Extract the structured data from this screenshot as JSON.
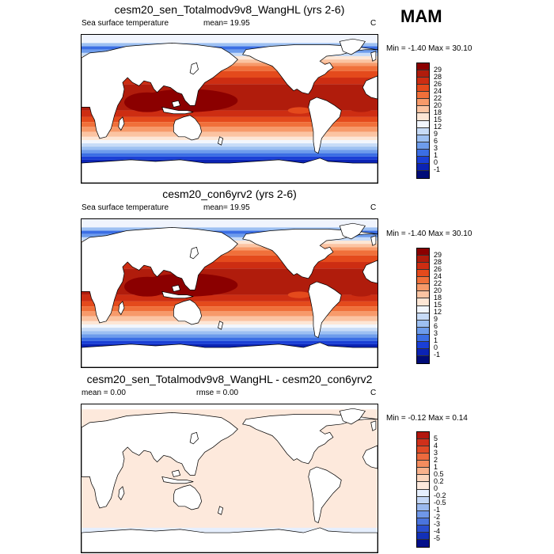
{
  "season": "MAM",
  "panels": [
    {
      "title": "cesm20_sen_Totalmodv9v8_WangHL (yrs 2-6)",
      "left_label": "Sea surface temperature",
      "center_label": "mean=  19.95",
      "units": "C",
      "minmax": "Min =  -1.40 Max =  30.10",
      "colorbar": {
        "labels": [
          "29",
          "28",
          "26",
          "24",
          "22",
          "20",
          "18",
          "15",
          "12",
          "9",
          "6",
          "3",
          "1",
          "0",
          "-1"
        ],
        "colors": [
          "#8b0000",
          "#b01c0c",
          "#cd2d12",
          "#e44a1c",
          "#f0703a",
          "#f79a6a",
          "#fbc4a2",
          "#fde6d5",
          "#f2f6fd",
          "#c7dbf7",
          "#9dc0f2",
          "#6d9cec",
          "#3b6ee4",
          "#1a3fd6",
          "#0b23b4",
          "#000c78"
        ]
      },
      "map_type": "sst"
    },
    {
      "title": "cesm20_con6yrv2 (yrs 2-6)",
      "left_label": "Sea surface temperature",
      "center_label": "mean=  19.95",
      "units": "C",
      "minmax": "Min =  -1.40 Max =  30.10",
      "colorbar": {
        "labels": [
          "29",
          "28",
          "26",
          "24",
          "22",
          "20",
          "18",
          "15",
          "12",
          "9",
          "6",
          "3",
          "1",
          "0",
          "-1"
        ],
        "colors": [
          "#8b0000",
          "#b01c0c",
          "#cd2d12",
          "#e44a1c",
          "#f0703a",
          "#f79a6a",
          "#fbc4a2",
          "#fde6d5",
          "#f2f6fd",
          "#c7dbf7",
          "#9dc0f2",
          "#6d9cec",
          "#3b6ee4",
          "#1a3fd6",
          "#0b23b4",
          "#000c78"
        ]
      },
      "map_type": "sst"
    },
    {
      "title": "cesm20_sen_Totalmodv9v8_WangHL - cesm20_con6yrv2",
      "left_label": "mean =   0.00",
      "center_label": "rmse =   0.00",
      "units": "C",
      "minmax": "Min = -0.12 Max =   0.14",
      "colorbar": {
        "labels": [
          "5",
          "4",
          "3",
          "2",
          "1",
          "0.5",
          "0.2",
          "0",
          "-0.2",
          "-0.5",
          "-1",
          "-2",
          "-3",
          "-4",
          "-5"
        ],
        "colors": [
          "#b2170f",
          "#d0301a",
          "#e04a26",
          "#ec6a3e",
          "#f48c5e",
          "#f9b28c",
          "#fcd6bd",
          "#fde9dc",
          "#e6effd",
          "#c4d7f6",
          "#9ab9ef",
          "#6f97e8",
          "#4a74de",
          "#2a4ecf",
          "#1230b8",
          "#020f8a"
        ]
      },
      "map_type": "diff"
    }
  ]
}
